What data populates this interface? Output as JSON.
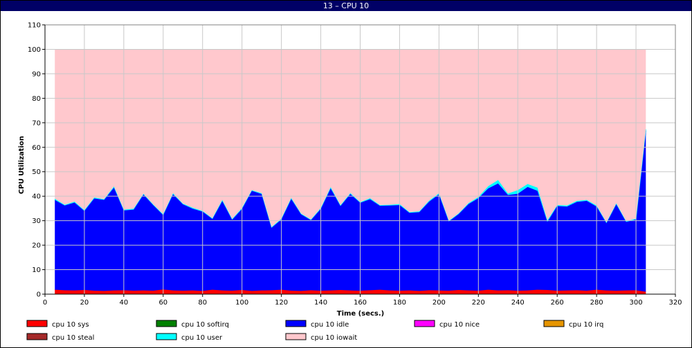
{
  "window": {
    "title": "13 – CPU 10"
  },
  "chart_data": {
    "type": "area",
    "stacked": true,
    "title": "13 – CPU 10",
    "xlabel": "Time (secs.)",
    "ylabel": "CPU Utilization",
    "xlim": [
      0,
      320
    ],
    "ylim": [
      0,
      110
    ],
    "xticks": [
      0,
      20,
      40,
      60,
      80,
      100,
      120,
      140,
      160,
      180,
      200,
      220,
      240,
      260,
      280,
      300,
      320
    ],
    "yticks": [
      0,
      10,
      20,
      30,
      40,
      50,
      60,
      70,
      80,
      90,
      100,
      110
    ],
    "grid": true,
    "legend_position": "bottom",
    "x": [
      5,
      10,
      15,
      20,
      25,
      30,
      35,
      40,
      45,
      50,
      55,
      60,
      65,
      70,
      75,
      80,
      85,
      90,
      95,
      100,
      105,
      110,
      115,
      120,
      125,
      130,
      135,
      140,
      145,
      150,
      155,
      160,
      165,
      170,
      175,
      180,
      185,
      190,
      195,
      200,
      205,
      210,
      215,
      220,
      225,
      230,
      235,
      240,
      245,
      250,
      255,
      260,
      265,
      270,
      275,
      280,
      285,
      290,
      295,
      300,
      305
    ],
    "series": [
      {
        "name": "cpu 10 sys",
        "color": "#ff0000",
        "values": [
          1.8,
          1.6,
          1.5,
          1.7,
          1.4,
          1.3,
          1.5,
          1.6,
          1.4,
          1.5,
          1.4,
          1.9,
          1.5,
          1.4,
          1.5,
          1.3,
          1.8,
          1.5,
          1.4,
          1.7,
          1.3,
          1.5,
          1.6,
          1.8,
          1.4,
          1.3,
          1.6,
          1.4,
          1.5,
          1.7,
          1.5,
          1.4,
          1.6,
          1.8,
          1.5,
          1.4,
          1.5,
          1.3,
          1.6,
          1.5,
          1.4,
          1.7,
          1.5,
          1.4,
          1.8,
          1.5,
          1.6,
          1.4,
          1.5,
          1.8,
          1.7,
          1.4,
          1.5,
          1.6,
          1.4,
          1.8,
          1.5,
          1.4,
          1.5,
          1.6,
          1.0
        ]
      },
      {
        "name": "cpu 10 softirq",
        "color": "#008000",
        "values": [
          0,
          0,
          0,
          0,
          0,
          0,
          0,
          0,
          0,
          0,
          0,
          0,
          0,
          0,
          0,
          0,
          0,
          0,
          0,
          0,
          0,
          0,
          0,
          0,
          0,
          0,
          0,
          0,
          0,
          0,
          0,
          0,
          0,
          0,
          0,
          0,
          0,
          0,
          0,
          0,
          0,
          0,
          0,
          0,
          0,
          0,
          0,
          0,
          0,
          0,
          0,
          0,
          0,
          0,
          0,
          0,
          0,
          0,
          0,
          0,
          0
        ]
      },
      {
        "name": "cpu 10 idle",
        "color": "#0000ff",
        "values": [
          36.7,
          34.6,
          35.9,
          32.3,
          37.7,
          37.2,
          42.0,
          32.6,
          33.1,
          39.2,
          34.9,
          30.4,
          39.3,
          35.3,
          33.4,
          32.4,
          28.9,
          36.5,
          29.0,
          33.1,
          40.9,
          39.4,
          25.5,
          28.7,
          37.5,
          31.3,
          28.6,
          33.4,
          41.7,
          34.3,
          39.4,
          35.9,
          37.2,
          34.3,
          34.7,
          35.0,
          31.7,
          32.2,
          36.2,
          39.3,
          28.3,
          31.0,
          35.3,
          37.8,
          41.4,
          43.7,
          38.9,
          39.6,
          42.3,
          40.4,
          27.8,
          34.6,
          34.3,
          36.1,
          36.7,
          34.0,
          27.5,
          35.3,
          28.0,
          28.9,
          65.8
        ]
      },
      {
        "name": "cpu 10 nice",
        "color": "#ff00ff",
        "values": [
          0,
          0,
          0,
          0,
          0,
          0,
          0,
          0,
          0,
          0,
          0,
          0,
          0,
          0,
          0,
          0,
          0,
          0,
          0,
          0,
          0,
          0,
          0,
          0,
          0,
          0,
          0,
          0,
          0,
          0,
          0,
          0,
          0,
          0,
          0,
          0,
          0,
          0,
          0,
          0,
          0,
          0,
          0,
          0,
          0,
          0,
          0,
          0,
          0,
          0,
          0,
          0,
          0,
          0,
          0,
          0,
          0,
          0,
          0,
          0,
          0
        ]
      },
      {
        "name": "cpu 10 irq",
        "color": "#e69500",
        "values": [
          0,
          0,
          0,
          0,
          0,
          0,
          0,
          0,
          0,
          0,
          0,
          0,
          0,
          0,
          0,
          0,
          0,
          0,
          0,
          0,
          0,
          0,
          0,
          0,
          0,
          0,
          0,
          0,
          0,
          0,
          0,
          0,
          0,
          0,
          0,
          0,
          0,
          0,
          0,
          0,
          0,
          0,
          0,
          0,
          0,
          0,
          0,
          0,
          0,
          0,
          0,
          0,
          0,
          0,
          0,
          0,
          0,
          0,
          0,
          0,
          0
        ]
      },
      {
        "name": "cpu 10 steal",
        "color": "#a52a2a",
        "values": [
          0,
          0,
          0,
          0,
          0,
          0,
          0,
          0,
          0,
          0,
          0,
          0,
          0,
          0,
          0,
          0,
          0,
          0,
          0,
          0,
          0,
          0,
          0,
          0,
          0,
          0,
          0,
          0,
          0,
          0,
          0,
          0,
          0,
          0,
          0,
          0,
          0,
          0,
          0,
          0,
          0,
          0,
          0,
          0,
          0,
          0,
          0,
          0,
          0,
          0,
          0,
          0,
          0,
          0,
          0,
          0,
          0,
          0,
          0,
          0,
          0
        ]
      },
      {
        "name": "cpu 10 user",
        "color": "#00ffff",
        "values": [
          0.5,
          0.3,
          0.4,
          0.3,
          0.4,
          0.3,
          0.5,
          0.3,
          0.4,
          0.3,
          0.3,
          0.3,
          0.4,
          0.3,
          0.4,
          0.3,
          0.3,
          0.5,
          0.3,
          0.4,
          0.3,
          0.3,
          0.3,
          0.4,
          0.4,
          0.3,
          0.3,
          0.4,
          0.5,
          0.3,
          0.4,
          0.3,
          0.4,
          0.3,
          0.3,
          0.4,
          0.3,
          0.3,
          0.4,
          0.4,
          0.3,
          0.3,
          0.4,
          0.5,
          0.9,
          1.4,
          0.6,
          1.5,
          1.2,
          1.3,
          0.6,
          0.4,
          0.4,
          0.4,
          0.4,
          0.4,
          0.3,
          0.4,
          0.3,
          0.3,
          0.6
        ]
      },
      {
        "name": "cpu 10 iowait",
        "color": "#ffc8cd",
        "values": [
          61.0,
          63.5,
          62.2,
          65.7,
          60.5,
          61.2,
          56.0,
          65.5,
          65.1,
          59.0,
          63.4,
          67.4,
          58.8,
          63.0,
          64.7,
          66.0,
          69.0,
          61.5,
          69.3,
          64.8,
          57.5,
          58.8,
          72.6,
          69.1,
          60.7,
          67.1,
          69.5,
          64.8,
          56.3,
          63.7,
          58.7,
          62.4,
          60.8,
          63.6,
          63.5,
          63.2,
          66.5,
          66.2,
          61.8,
          58.8,
          70.0,
          67.0,
          62.8,
          60.3,
          55.9,
          53.4,
          58.9,
          57.5,
          55.0,
          56.5,
          69.9,
          63.6,
          63.8,
          61.9,
          61.5,
          63.8,
          70.7,
          62.9,
          70.2,
          69.2,
          32.6
        ]
      }
    ]
  }
}
